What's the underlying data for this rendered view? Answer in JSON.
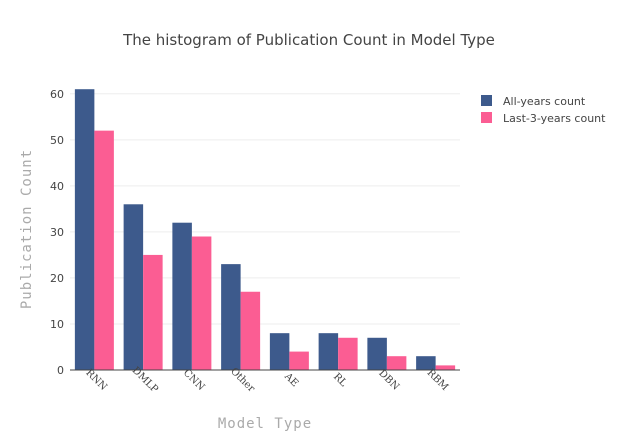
{
  "chart_data": {
    "type": "bar",
    "title": "The histogram of  Publication Count in Model Type",
    "xlabel": "Model Type",
    "ylabel": "Publication Count",
    "categories": [
      "RNN",
      "DMLP",
      "CNN",
      "Other",
      "AE",
      "RL",
      "DBN",
      "RBM"
    ],
    "series": [
      {
        "name": "All-years count",
        "values": [
          61,
          36,
          32,
          23,
          8,
          8,
          7,
          3
        ],
        "color": "#3d5a8c"
      },
      {
        "name": "Last-3-years count",
        "values": [
          52,
          25,
          29,
          17,
          4,
          7,
          3,
          1
        ],
        "color": "#fb5d93"
      }
    ],
    "ylim": [
      0,
      63
    ],
    "yticks": [
      0,
      10,
      20,
      30,
      40,
      50,
      60
    ],
    "grid": true,
    "legend_position": "top-right"
  }
}
